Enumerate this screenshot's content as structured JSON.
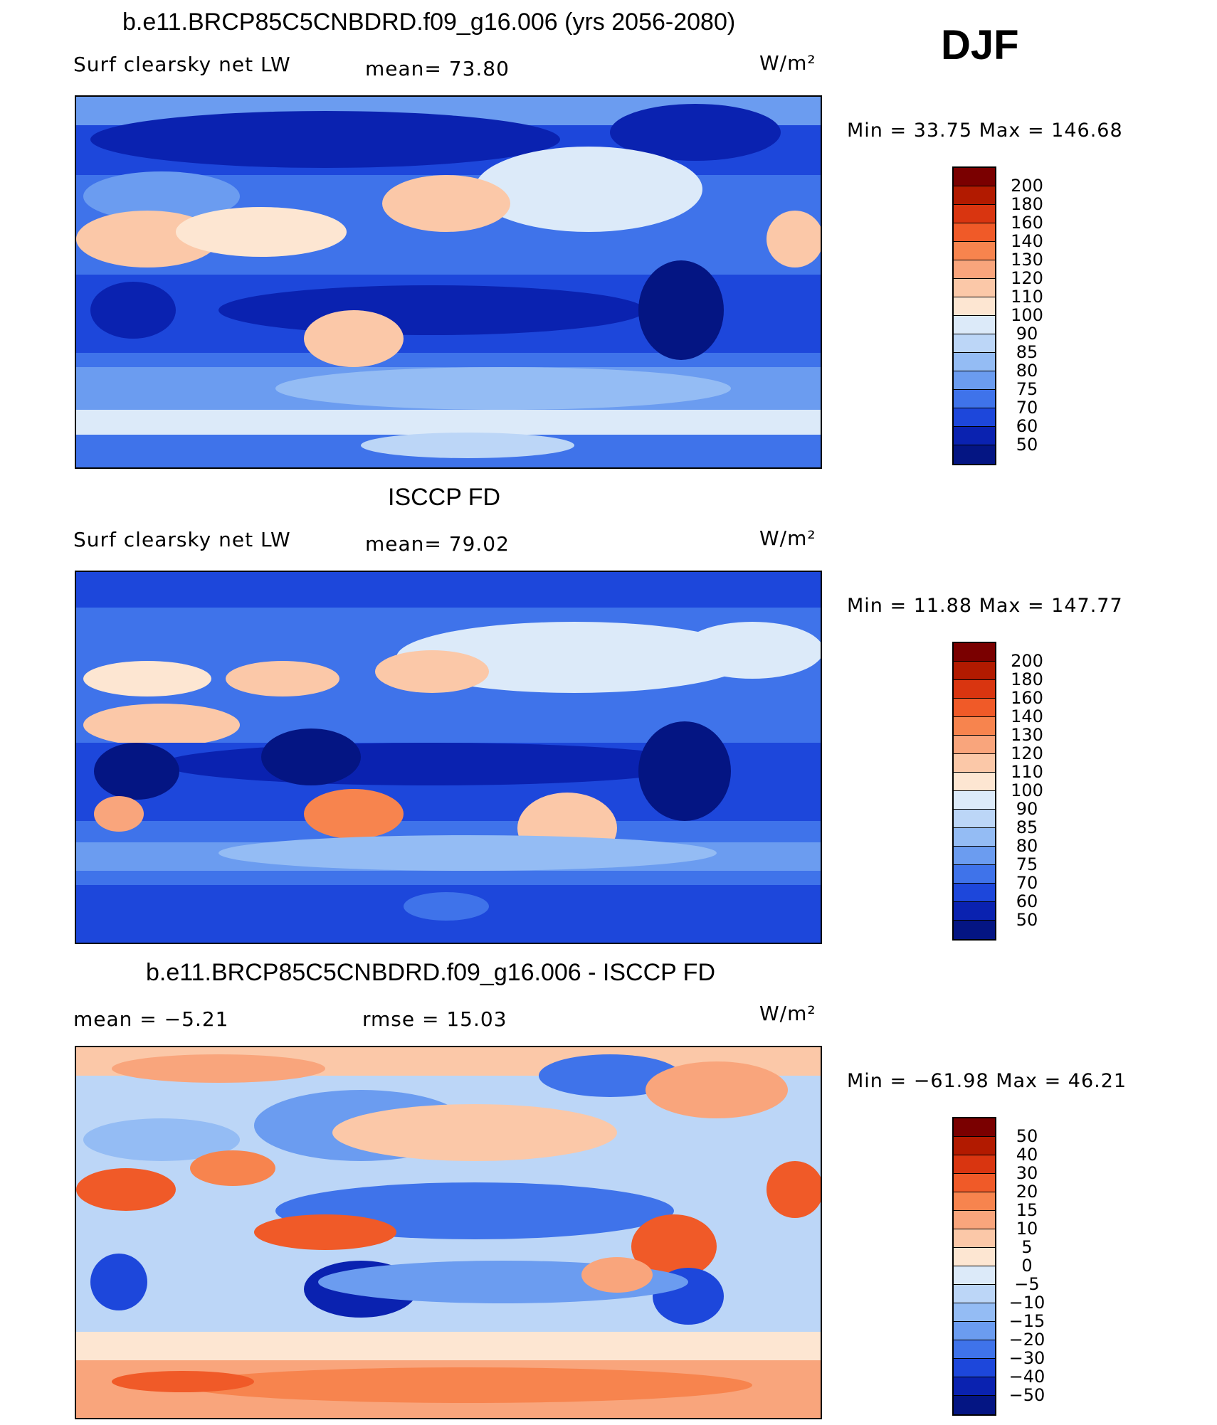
{
  "panel_label": "DJF",
  "panels": [
    {
      "title": "b.e11.BRCP85C5CNBDRD.f09_g16.006 (yrs 2056-2080)",
      "left_label": "Surf clearsky net LW",
      "center_label": "mean=   73.80",
      "units": "W/m²",
      "minmax": "Min =   33.75 Max = 146.68",
      "levels": [
        "200",
        "180",
        "160",
        "140",
        "130",
        "120",
        "110",
        "100",
        "90",
        "85",
        "80",
        "75",
        "70",
        "60",
        "50"
      ]
    },
    {
      "title": "ISCCP FD",
      "left_label": "Surf clearsky net LW",
      "center_label": "mean=   79.02",
      "units": "W/m²",
      "minmax": "Min =   11.88 Max = 147.77",
      "levels": [
        "200",
        "180",
        "160",
        "140",
        "130",
        "120",
        "110",
        "100",
        "90",
        "85",
        "80",
        "75",
        "70",
        "60",
        "50"
      ]
    },
    {
      "title": "b.e11.BRCP85C5CNBDRD.f09_g16.006 - ISCCP FD",
      "left_label": "mean =   −5.21",
      "center_label": "rmse =   15.03",
      "units": "W/m²",
      "minmax": "Min = −61.98 Max =   46.21",
      "levels": [
        "50",
        "40",
        "30",
        "20",
        "15",
        "10",
        "5",
        "0",
        "−5",
        "−10",
        "−15",
        "−20",
        "−30",
        "−40",
        "−50"
      ]
    }
  ],
  "colors": {
    "scale": [
      "#7a0000",
      "#b21a00",
      "#d93510",
      "#f05a28",
      "#f7844e",
      "#f9a57c",
      "#fbc8a8",
      "#fde6d2",
      "#dceaf9",
      "#bcd6f7",
      "#94bcf4",
      "#6b9cf0",
      "#3f73ea",
      "#1d47db",
      "#0a22b0",
      "#041583"
    ]
  },
  "chart_data": [
    {
      "type": "heatmap",
      "title": "b.e11.BRCP85C5CNBDRD.f09_g16.006 (yrs 2056-2080)",
      "variable": "Surf clearsky net LW",
      "units": "W/m²",
      "mean": 73.8,
      "min": 33.75,
      "max": 146.68,
      "contour_levels": [
        50,
        60,
        70,
        75,
        80,
        85,
        90,
        100,
        110,
        120,
        130,
        140,
        160,
        180,
        200
      ]
    },
    {
      "type": "heatmap",
      "title": "ISCCP FD",
      "variable": "Surf clearsky net LW",
      "units": "W/m²",
      "mean": 79.02,
      "min": 11.88,
      "max": 147.77,
      "contour_levels": [
        50,
        60,
        70,
        75,
        80,
        85,
        90,
        100,
        110,
        120,
        130,
        140,
        160,
        180,
        200
      ]
    },
    {
      "type": "heatmap",
      "title": "b.e11.BRCP85C5CNBDRD.f09_g16.006 - ISCCP FD",
      "units": "W/m²",
      "mean": -5.21,
      "rmse": 15.03,
      "min": -61.98,
      "max": 46.21,
      "contour_levels": [
        -50,
        -40,
        -30,
        -20,
        -15,
        -10,
        -5,
        0,
        5,
        10,
        15,
        20,
        30,
        40,
        50
      ]
    }
  ]
}
